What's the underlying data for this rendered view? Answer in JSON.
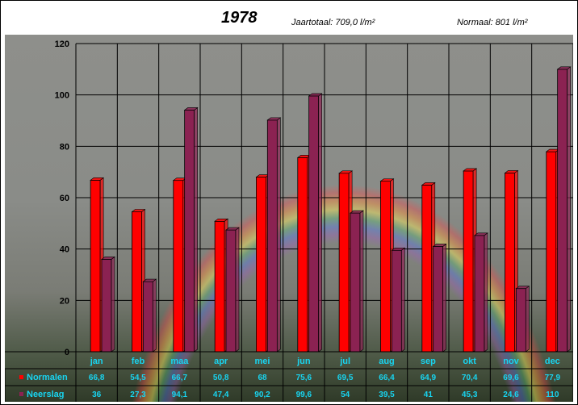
{
  "header": {
    "title": "1978",
    "total": "Jaartotaal: 709,0 l/m²",
    "normal": "Normaal: 801 l/m²"
  },
  "colors": {
    "normalen": "#ff0000",
    "neerslag": "#8b2252",
    "table_text": "#18d4f0"
  },
  "chart_data": {
    "type": "bar",
    "categories": [
      "jan",
      "feb",
      "maa",
      "apr",
      "mei",
      "jun",
      "jul",
      "aug",
      "sep",
      "okt",
      "nov",
      "dec"
    ],
    "series": [
      {
        "name": "Normalen",
        "values": [
          66.8,
          54.5,
          66.7,
          50.8,
          68,
          75.6,
          69.5,
          66.4,
          64.9,
          70.4,
          69.6,
          77.9
        ],
        "labels": [
          "66,8",
          "54,5",
          "66,7",
          "50,8",
          "68",
          "75,6",
          "69,5",
          "66,4",
          "64,9",
          "70,4",
          "69,6",
          "77,9"
        ]
      },
      {
        "name": "Neerslag",
        "values": [
          36,
          27.3,
          94.1,
          47.4,
          90.2,
          99.6,
          54,
          39.5,
          41,
          45.3,
          24.6,
          110
        ],
        "labels": [
          "36",
          "27,3",
          "94,1",
          "47,4",
          "90,2",
          "99,6",
          "54",
          "39,5",
          "41",
          "45,3",
          "24,6",
          "110"
        ]
      }
    ],
    "ylim": [
      0,
      120
    ],
    "yticks": [
      "0",
      "20",
      "40",
      "60",
      "80",
      "100",
      "120"
    ],
    "grid": true,
    "legend": "data-table"
  }
}
